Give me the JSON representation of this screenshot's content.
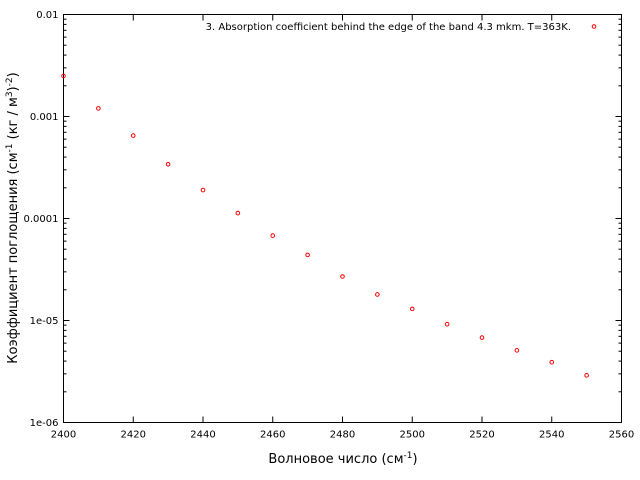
{
  "chart_data": {
    "type": "scatter",
    "title": "",
    "xlabel": {
      "base": "Волновое число (см",
      "sup": "-1",
      "tail": ")"
    },
    "ylabel": {
      "p1": "Коэффициент поглощения (см",
      "sup1": "-1",
      "p2": " (кг / м",
      "sup2": "3",
      "p3": ")",
      "sup3": "-2",
      "p4": ")"
    },
    "xlim": [
      2400,
      2560
    ],
    "ylim": [
      1e-06,
      0.01
    ],
    "yscale": "log",
    "xticks": [
      2400,
      2420,
      2440,
      2460,
      2480,
      2500,
      2520,
      2540,
      2560
    ],
    "xtick_labels": [
      "2400",
      "2420",
      "2440",
      "2460",
      "2480",
      "2500",
      "2520",
      "2540",
      "2560"
    ],
    "yticks": [
      0.01,
      0.001,
      0.0001,
      1e-05,
      1e-06
    ],
    "ytick_labels": [
      "0.01",
      "0.001",
      "0.0001",
      "1e-05",
      "1e-06"
    ],
    "grid": false,
    "legend_position": "top-right",
    "series": [
      {
        "name": "3. Absorption coefficient behind the edge of the band 4.3 mkm. T=363K.",
        "color": "#ff0000",
        "marker": "open-circle",
        "x": [
          2400,
          2410,
          2420,
          2430,
          2440,
          2450,
          2460,
          2470,
          2480,
          2490,
          2500,
          2510,
          2520,
          2530,
          2540,
          2550
        ],
        "y": [
          0.0025,
          0.0012,
          0.00065,
          0.00034,
          0.00019,
          0.000113,
          6.8e-05,
          4.4e-05,
          2.7e-05,
          1.8e-05,
          1.3e-05,
          9.2e-06,
          6.8e-06,
          5.1e-06,
          3.9e-06,
          2.9e-06
        ]
      }
    ]
  }
}
